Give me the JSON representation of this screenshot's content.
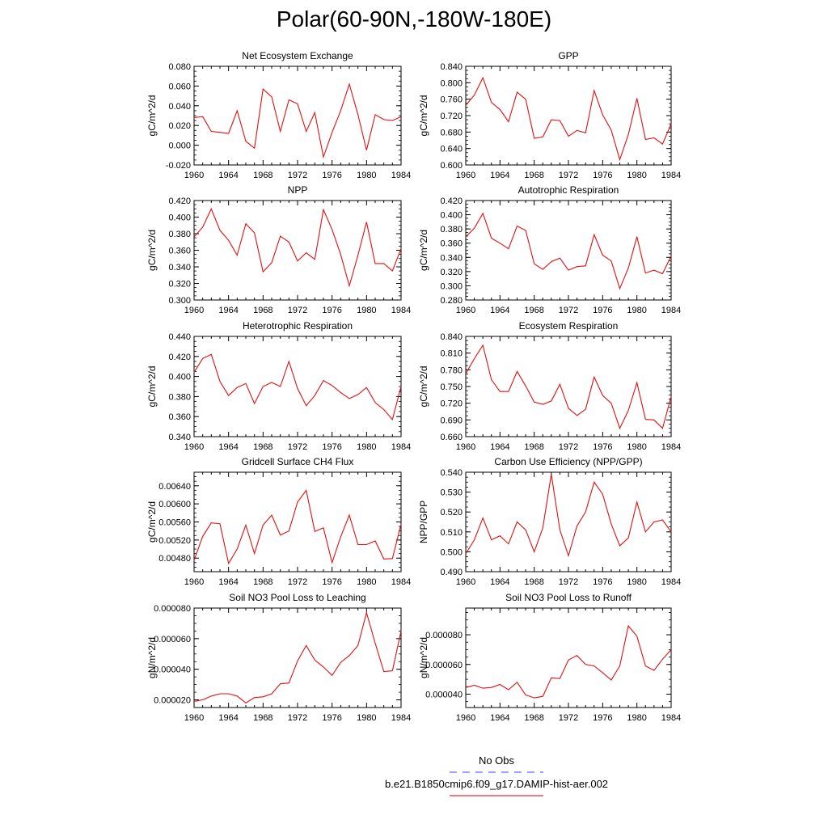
{
  "figure": {
    "title": "Polar(60-90N,-180W-180E)",
    "legend": [
      {
        "label": "No Obs",
        "color": "#6666ee",
        "style": "dashed"
      },
      {
        "label": "b.e21.B1850cmip6.f09_g17.DAMIP-hist-aer.002",
        "color": "#e03030",
        "style": "solid"
      }
    ]
  },
  "chart_data": [
    {
      "type": "line",
      "title": "Net Ecosystem Exchange",
      "ylabel": "gC/m^2/d",
      "xlim": [
        1960,
        1984
      ],
      "ylim": [
        -0.02,
        0.08
      ],
      "xticks": [
        "1960",
        "1964",
        "1968",
        "1972",
        "1976",
        "1980",
        "1984"
      ],
      "yticks": [
        "-0.020",
        "0.000",
        "0.020",
        "0.040",
        "0.060",
        "0.080"
      ],
      "color": "#e01010",
      "x": [
        1960,
        1961,
        1962,
        1963,
        1964,
        1965,
        1966,
        1967,
        1968,
        1969,
        1970,
        1971,
        1972,
        1973,
        1974,
        1975,
        1976,
        1977,
        1978,
        1979,
        1980,
        1981,
        1982,
        1983,
        1984
      ],
      "values": [
        0.028,
        0.029,
        0.014,
        0.013,
        0.012,
        0.035,
        0.004,
        -0.003,
        0.057,
        0.049,
        0.014,
        0.046,
        0.042,
        0.014,
        0.033,
        -0.012,
        0.013,
        0.035,
        0.062,
        0.031,
        -0.005,
        0.031,
        0.026,
        0.025,
        0.029
      ]
    },
    {
      "type": "line",
      "title": "GPP",
      "ylabel": "gC/m^2/d",
      "xlim": [
        1960,
        1984
      ],
      "ylim": [
        0.6,
        0.84
      ],
      "xticks": [
        "1960",
        "1964",
        "1968",
        "1972",
        "1976",
        "1980",
        "1984"
      ],
      "yticks": [
        "0.600",
        "0.640",
        "0.680",
        "0.720",
        "0.760",
        "0.800",
        "0.840"
      ],
      "color": "#e01010",
      "x": [
        1960,
        1961,
        1962,
        1963,
        1964,
        1965,
        1966,
        1967,
        1968,
        1969,
        1970,
        1971,
        1972,
        1973,
        1974,
        1975,
        1976,
        1977,
        1978,
        1979,
        1980,
        1981,
        1982,
        1983,
        1984
      ],
      "values": [
        0.745,
        0.77,
        0.812,
        0.752,
        0.735,
        0.705,
        0.777,
        0.76,
        0.665,
        0.668,
        0.71,
        0.708,
        0.67,
        0.684,
        0.678,
        0.781,
        0.722,
        0.685,
        0.613,
        0.674,
        0.762,
        0.662,
        0.666,
        0.651,
        0.7
      ]
    },
    {
      "type": "line",
      "title": "NPP",
      "ylabel": "gC/m^2/d",
      "xlim": [
        1960,
        1984
      ],
      "ylim": [
        0.3,
        0.42
      ],
      "xticks": [
        "1960",
        "1964",
        "1968",
        "1972",
        "1976",
        "1980",
        "1984"
      ],
      "yticks": [
        "0.300",
        "0.320",
        "0.340",
        "0.360",
        "0.380",
        "0.400",
        "0.420"
      ],
      "color": "#e01010",
      "x": [
        1960,
        1961,
        1962,
        1963,
        1964,
        1965,
        1966,
        1967,
        1968,
        1969,
        1970,
        1971,
        1972,
        1973,
        1974,
        1975,
        1976,
        1977,
        1978,
        1979,
        1980,
        1981,
        1982,
        1983,
        1984
      ],
      "values": [
        0.376,
        0.388,
        0.41,
        0.384,
        0.372,
        0.354,
        0.392,
        0.381,
        0.334,
        0.345,
        0.377,
        0.37,
        0.347,
        0.357,
        0.349,
        0.409,
        0.385,
        0.355,
        0.317,
        0.354,
        0.394,
        0.344,
        0.344,
        0.335,
        0.362
      ]
    },
    {
      "type": "line",
      "title": "Autotrophic Respiration",
      "ylabel": "gC/m^2/d",
      "xlim": [
        1960,
        1984
      ],
      "ylim": [
        0.28,
        0.42
      ],
      "xticks": [
        "1960",
        "1964",
        "1968",
        "1972",
        "1976",
        "1980",
        "1984"
      ],
      "yticks": [
        "0.280",
        "0.300",
        "0.320",
        "0.340",
        "0.360",
        "0.380",
        "0.400",
        "0.420"
      ],
      "color": "#e01010",
      "x": [
        1960,
        1961,
        1962,
        1963,
        1964,
        1965,
        1966,
        1967,
        1968,
        1969,
        1970,
        1971,
        1972,
        1973,
        1974,
        1975,
        1976,
        1977,
        1978,
        1979,
        1980,
        1981,
        1982,
        1983,
        1984
      ],
      "values": [
        0.369,
        0.381,
        0.402,
        0.367,
        0.36,
        0.352,
        0.384,
        0.378,
        0.331,
        0.323,
        0.334,
        0.339,
        0.322,
        0.327,
        0.328,
        0.372,
        0.343,
        0.335,
        0.296,
        0.325,
        0.369,
        0.318,
        0.322,
        0.317,
        0.342
      ]
    },
    {
      "type": "line",
      "title": "Heterotrophic Respiration",
      "ylabel": "gC/m^2/d",
      "xlim": [
        1960,
        1984
      ],
      "ylim": [
        0.34,
        0.44
      ],
      "xticks": [
        "1960",
        "1964",
        "1968",
        "1972",
        "1976",
        "1980",
        "1984"
      ],
      "yticks": [
        "0.340",
        "0.360",
        "0.380",
        "0.400",
        "0.420",
        "0.440"
      ],
      "color": "#e01010",
      "x": [
        1960,
        1961,
        1962,
        1963,
        1964,
        1965,
        1966,
        1967,
        1968,
        1969,
        1970,
        1971,
        1972,
        1973,
        1974,
        1975,
        1976,
        1977,
        1978,
        1979,
        1980,
        1981,
        1982,
        1983,
        1984
      ],
      "values": [
        0.404,
        0.418,
        0.422,
        0.395,
        0.381,
        0.389,
        0.393,
        0.373,
        0.39,
        0.394,
        0.39,
        0.415,
        0.388,
        0.371,
        0.381,
        0.396,
        0.391,
        0.384,
        0.378,
        0.382,
        0.389,
        0.374,
        0.367,
        0.357,
        0.39
      ]
    },
    {
      "type": "line",
      "title": "Ecosystem Respiration",
      "ylabel": "gC/m^2/d",
      "xlim": [
        1960,
        1984
      ],
      "ylim": [
        0.66,
        0.84
      ],
      "xticks": [
        "1960",
        "1964",
        "1968",
        "1972",
        "1976",
        "1980",
        "1984"
      ],
      "yticks": [
        "0.660",
        "0.690",
        "0.720",
        "0.750",
        "0.780",
        "0.810",
        "0.840"
      ],
      "color": "#e01010",
      "x": [
        1960,
        1961,
        1962,
        1963,
        1964,
        1965,
        1966,
        1967,
        1968,
        1969,
        1970,
        1971,
        1972,
        1973,
        1974,
        1975,
        1976,
        1977,
        1978,
        1979,
        1980,
        1981,
        1982,
        1983,
        1984
      ],
      "values": [
        0.773,
        0.8,
        0.824,
        0.762,
        0.741,
        0.741,
        0.777,
        0.751,
        0.722,
        0.718,
        0.724,
        0.754,
        0.711,
        0.698,
        0.709,
        0.767,
        0.734,
        0.72,
        0.675,
        0.707,
        0.757,
        0.691,
        0.69,
        0.675,
        0.732
      ]
    },
    {
      "type": "line",
      "title": "Gridcell Surface CH4 Flux",
      "ylabel": "gC/m^2/d",
      "xlim": [
        1960,
        1984
      ],
      "ylim": [
        0.0045,
        0.0067
      ],
      "xticks": [
        "1960",
        "1964",
        "1968",
        "1972",
        "1976",
        "1980",
        "1984"
      ],
      "yticks": [
        "0.00480",
        "0.00520",
        "0.00560",
        "0.00600",
        "0.00640"
      ],
      "ytick_values": [
        0.0048,
        0.0052,
        0.0056,
        0.006,
        0.0064
      ],
      "color": "#e01010",
      "x": [
        1960,
        1961,
        1962,
        1963,
        1964,
        1965,
        1966,
        1967,
        1968,
        1969,
        1970,
        1971,
        1972,
        1973,
        1974,
        1975,
        1976,
        1977,
        1978,
        1979,
        1980,
        1981,
        1982,
        1983,
        1984
      ],
      "values": [
        0.00475,
        0.00528,
        0.00558,
        0.00556,
        0.00468,
        0.005,
        0.00553,
        0.0049,
        0.00553,
        0.00575,
        0.00531,
        0.0054,
        0.00604,
        0.0063,
        0.00539,
        0.00547,
        0.0047,
        0.00527,
        0.00575,
        0.0051,
        0.0051,
        0.00518,
        0.00478,
        0.00479,
        0.00555
      ]
    },
    {
      "type": "line",
      "title": "Carbon Use Efficiency (NPP/GPP)",
      "ylabel": "NPP/GPP",
      "xlim": [
        1960,
        1984
      ],
      "ylim": [
        0.49,
        0.54
      ],
      "xticks": [
        "1960",
        "1964",
        "1968",
        "1972",
        "1976",
        "1980",
        "1984"
      ],
      "yticks": [
        "0.490",
        "0.500",
        "0.510",
        "0.520",
        "0.530",
        "0.540"
      ],
      "color": "#e01010",
      "x": [
        1960,
        1961,
        1962,
        1963,
        1964,
        1965,
        1966,
        1967,
        1968,
        1969,
        1970,
        1971,
        1972,
        1973,
        1974,
        1975,
        1976,
        1977,
        1978,
        1979,
        1980,
        1981,
        1982,
        1983,
        1984
      ],
      "values": [
        0.499,
        0.506,
        0.517,
        0.506,
        0.508,
        0.504,
        0.515,
        0.511,
        0.5,
        0.512,
        0.539,
        0.511,
        0.498,
        0.513,
        0.52,
        0.535,
        0.529,
        0.514,
        0.503,
        0.507,
        0.525,
        0.51,
        0.515,
        0.516,
        0.51
      ]
    },
    {
      "type": "line",
      "title": "Soil NO3 Pool Loss to Leaching",
      "ylabel": "gN/m^2/d",
      "xlim": [
        1960,
        1984
      ],
      "ylim": [
        1.5e-05,
        8e-05
      ],
      "xticks": [
        "1960",
        "1964",
        "1968",
        "1972",
        "1976",
        "1980",
        "1984"
      ],
      "yticks": [
        "0.000020",
        "0.000040",
        "0.000060",
        "0.000080"
      ],
      "ytick_values": [
        2e-05,
        4e-05,
        6e-05,
        8e-05
      ],
      "color": "#e01010",
      "x": [
        1960,
        1961,
        1962,
        1963,
        1964,
        1965,
        1966,
        1967,
        1968,
        1969,
        1970,
        1971,
        1972,
        1973,
        1974,
        1975,
        1976,
        1977,
        1978,
        1979,
        1980,
        1981,
        1982,
        1983,
        1984
      ],
      "values": [
        1.9e-05,
        2e-05,
        2.25e-05,
        2.4e-05,
        2.4e-05,
        2.25e-05,
        1.8e-05,
        2.15e-05,
        2.2e-05,
        2.4e-05,
        3.05e-05,
        3.1e-05,
        4.55e-05,
        5.55e-05,
        4.6e-05,
        4.15e-05,
        3.6e-05,
        4.45e-05,
        4.9e-05,
        5.55e-05,
        7.7e-05,
        5.7e-05,
        3.85e-05,
        3.9e-05,
        6.5e-05
      ]
    },
    {
      "type": "line",
      "title": "Soil NO3 Pool Loss to Runoff",
      "ylabel": "gN/m^2/d",
      "xlim": [
        1960,
        1984
      ],
      "ylim": [
        3.1e-05,
        9.8e-05
      ],
      "xticks": [
        "1960",
        "1964",
        "1968",
        "1972",
        "1976",
        "1980",
        "1984"
      ],
      "yticks": [
        "0.000040",
        "0.000060",
        "0.000080"
      ],
      "ytick_values": [
        4e-05,
        6e-05,
        8e-05
      ],
      "color": "#e01010",
      "x": [
        1960,
        1961,
        1962,
        1963,
        1964,
        1965,
        1966,
        1967,
        1968,
        1969,
        1970,
        1971,
        1972,
        1973,
        1974,
        1975,
        1976,
        1977,
        1978,
        1979,
        1980,
        1981,
        1982,
        1983,
        1984
      ],
      "values": [
        4.45e-05,
        4.6e-05,
        4.4e-05,
        4.45e-05,
        4.65e-05,
        4.3e-05,
        4.8e-05,
        3.95e-05,
        3.75e-05,
        3.85e-05,
        5.1e-05,
        5.05e-05,
        6.3e-05,
        6.6e-05,
        6e-05,
        5.9e-05,
        5.45e-05,
        4.95e-05,
        5.9e-05,
        8.6e-05,
        7.9e-05,
        5.9e-05,
        5.6e-05,
        6.35e-05,
        7e-05
      ]
    }
  ]
}
